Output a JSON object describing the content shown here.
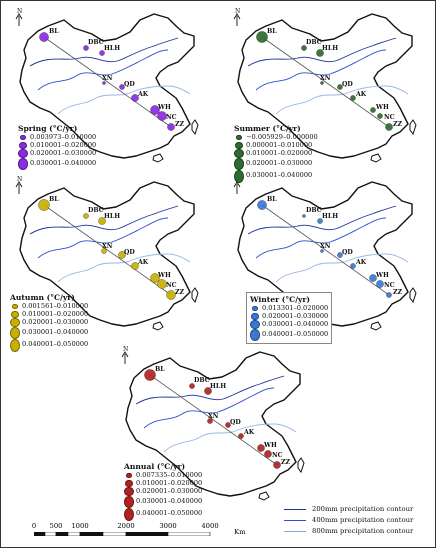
{
  "maps": [
    {
      "id": "spring",
      "title": "Spring (°C/yr)",
      "color": "#8a2be2",
      "classes": [
        "0.003973–0.010000",
        "0.010001–0.020000",
        "0.020001–0.030000",
        "0.030001–0.040000"
      ],
      "stations": [
        {
          "code": "BL",
          "cls": 3
        },
        {
          "code": "DBC",
          "cls": 1
        },
        {
          "code": "HLH",
          "cls": 1
        },
        {
          "code": "XN",
          "cls": 0
        },
        {
          "code": "QD",
          "cls": 1
        },
        {
          "code": "AK",
          "cls": 2
        },
        {
          "code": "WH",
          "cls": 3
        },
        {
          "code": "NC",
          "cls": 3
        },
        {
          "code": "ZZ",
          "cls": 2
        }
      ]
    },
    {
      "id": "summer",
      "title": "Summer (°C/yr)",
      "color": "#2e6b2e",
      "classes": [
        "−0.005929–0.000000",
        "0.000001–0.010000",
        "0.010001–0.020000",
        "0.020001–0.030000",
        "0.030001–0.040000"
      ],
      "stations": [
        {
          "code": "BL",
          "cls": 4
        },
        {
          "code": "DBC",
          "cls": 1
        },
        {
          "code": "HLH",
          "cls": 2
        },
        {
          "code": "XN",
          "cls": 0
        },
        {
          "code": "QD",
          "cls": 1
        },
        {
          "code": "AK",
          "cls": 1
        },
        {
          "code": "WH",
          "cls": 1
        },
        {
          "code": "NC",
          "cls": 1
        },
        {
          "code": "ZZ",
          "cls": 2
        }
      ]
    },
    {
      "id": "autumn",
      "title": "Autumn (°C/yr)",
      "color": "#c9b000",
      "classes": [
        "0.001561–0.010000",
        "0.010001–0.020000",
        "0.020001–0.030000",
        "0.030001–0.040000",
        "0.040001–0.050000"
      ],
      "stations": [
        {
          "code": "BL",
          "cls": 4
        },
        {
          "code": "DBC",
          "cls": 1
        },
        {
          "code": "HLH",
          "cls": 2
        },
        {
          "code": "XN",
          "cls": 1
        },
        {
          "code": "QD",
          "cls": 2
        },
        {
          "code": "AK",
          "cls": 2
        },
        {
          "code": "WH",
          "cls": 3
        },
        {
          "code": "NC",
          "cls": 3
        },
        {
          "code": "ZZ",
          "cls": 3
        }
      ]
    },
    {
      "id": "winter",
      "title": "Winter (°C/yr)",
      "color": "#3a78d8",
      "classes": [
        "0.013301–0.020000",
        "0.020001–0.030000",
        "0.030001–0.040000",
        "0.040001–0.050000"
      ],
      "stations": [
        {
          "code": "BL",
          "cls": 3
        },
        {
          "code": "DBC",
          "cls": 0
        },
        {
          "code": "HLH",
          "cls": 1
        },
        {
          "code": "XN",
          "cls": 0
        },
        {
          "code": "QD",
          "cls": 1
        },
        {
          "code": "AK",
          "cls": 1
        },
        {
          "code": "WH",
          "cls": 2
        },
        {
          "code": "NC",
          "cls": 2
        },
        {
          "code": "ZZ",
          "cls": 1
        }
      ]
    },
    {
      "id": "annual",
      "title": "Annual (°C/yr)",
      "color": "#b22222",
      "classes": [
        "0.007335–0.010000",
        "0.010001–0.020000",
        "0.020001–0.030000",
        "0.030001–0.040000",
        "0.040001–0.050000"
      ],
      "stations": [
        {
          "code": "BL",
          "cls": 4
        },
        {
          "code": "DBC",
          "cls": 1
        },
        {
          "code": "HLH",
          "cls": 2
        },
        {
          "code": "XN",
          "cls": 1
        },
        {
          "code": "QD",
          "cls": 1
        },
        {
          "code": "AK",
          "cls": 1
        },
        {
          "code": "WH",
          "cls": 2
        },
        {
          "code": "NC",
          "cls": 2
        },
        {
          "code": "ZZ",
          "cls": 2
        }
      ]
    }
  ],
  "north_label": "N",
  "contour_legend": [
    {
      "label": "200mm precipitation contour",
      "color": "#1a2f9a"
    },
    {
      "label": "400mm precipitation contour",
      "color": "#2b50d0"
    },
    {
      "label": "800mm precipitation contour",
      "color": "#7fa6e8"
    }
  ],
  "scale": {
    "ticks": [
      "0",
      "500",
      "1000",
      "2000",
      "3000",
      "4000"
    ],
    "unit": "Km"
  },
  "colors": {
    "outline": "#111111",
    "transect": "#555555",
    "contour_light": "#9bb7ea",
    "contour_mid": "#2b50d0",
    "contour_dark": "#1a2f9a"
  }
}
